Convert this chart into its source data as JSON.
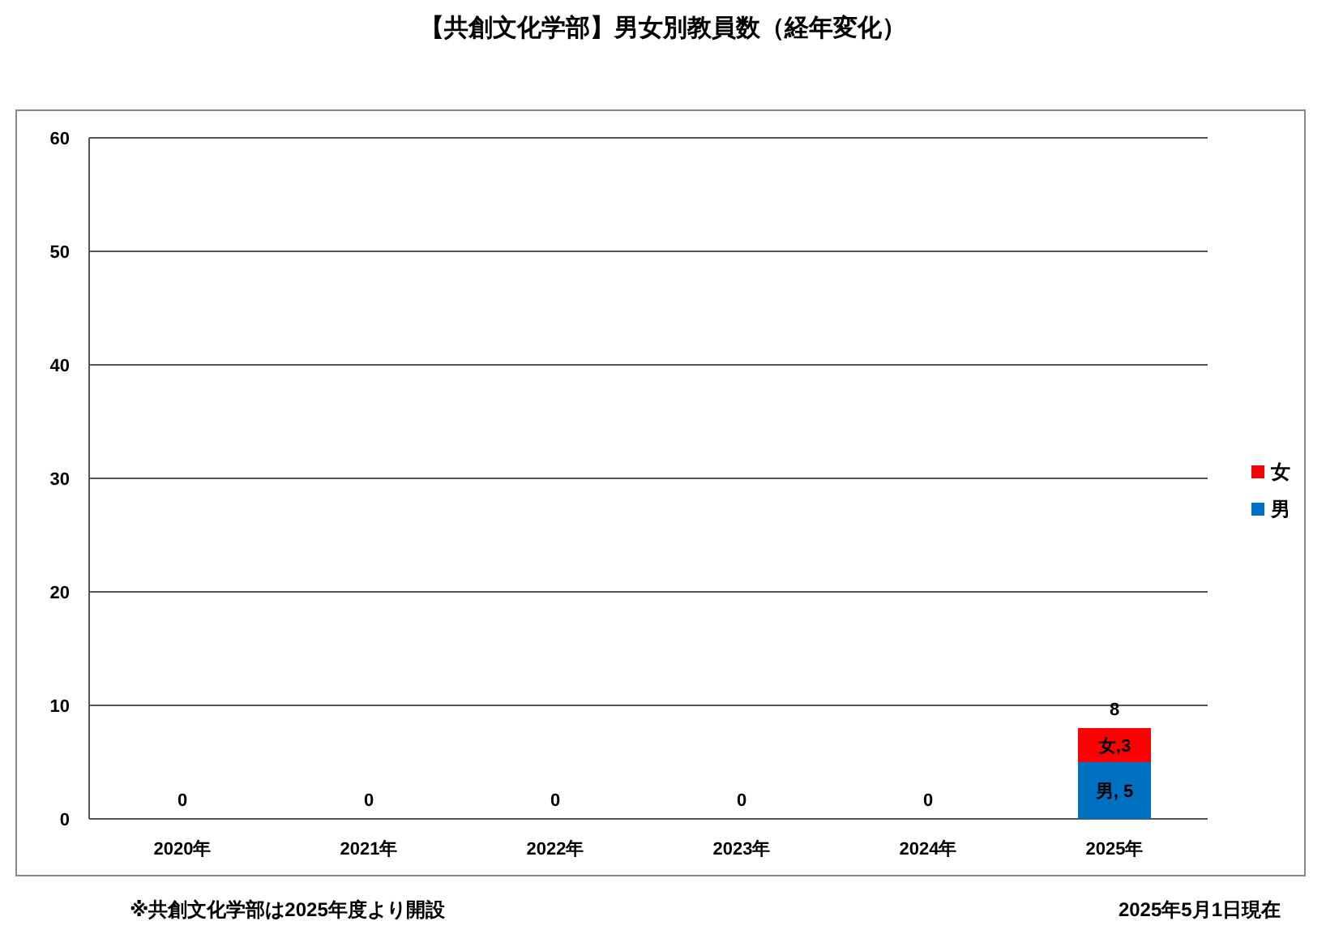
{
  "chart_data": {
    "type": "bar",
    "title": "【共創文化学部】男女別教員数（経年変化）",
    "categories": [
      "2020年",
      "2021年",
      "2022年",
      "2023年",
      "2024年",
      "2025年"
    ],
    "series": [
      {
        "name": "男",
        "color": "#0070c0",
        "values": [
          0,
          0,
          0,
          0,
          0,
          5
        ],
        "value_labels": [
          null,
          null,
          null,
          null,
          null,
          "男, 5"
        ]
      },
      {
        "name": "女",
        "color": "#ff0000",
        "values": [
          0,
          0,
          0,
          0,
          0,
          3
        ],
        "value_labels": [
          null,
          null,
          null,
          null,
          null,
          "女,3"
        ]
      }
    ],
    "stacked": true,
    "totals": [
      "0",
      "0",
      "0",
      "0",
      "0",
      "8"
    ],
    "ylim": [
      0,
      60
    ],
    "yticks": [
      0,
      10,
      20,
      30,
      40,
      50,
      60
    ],
    "grid": "y",
    "legend": "right",
    "annotations": [
      "※共創文化学部は2025年度より開設",
      "2025年5月1日現在"
    ]
  }
}
